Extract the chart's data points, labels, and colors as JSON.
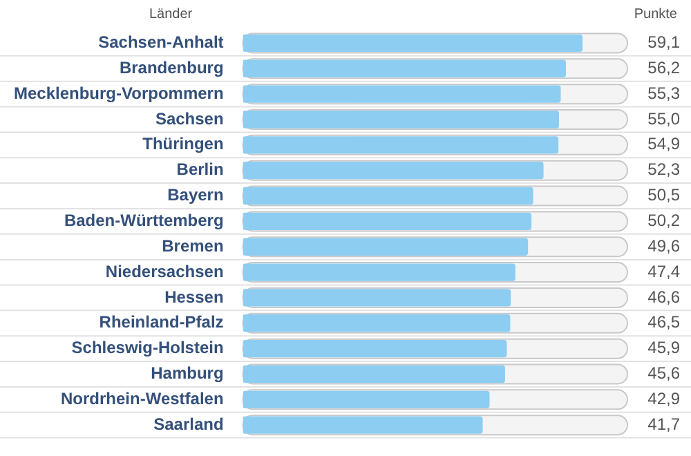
{
  "chart_data": {
    "type": "bar",
    "orientation": "horizontal",
    "ylabel": "Länder",
    "xlabel": "Punkte",
    "categories": [
      "Sachsen-Anhalt",
      "Brandenburg",
      "Mecklenburg-Vorpommern",
      "Sachsen",
      "Thüringen",
      "Berlin",
      "Bayern",
      "Baden-Württemberg",
      "Bremen",
      "Niedersachsen",
      "Hessen",
      "Rheinland-Pfalz",
      "Schleswig-Holstein",
      "Hamburg",
      "Nordrhein-Westfalen",
      "Saarland"
    ],
    "values": [
      59.1,
      56.2,
      55.3,
      55.0,
      54.9,
      52.3,
      50.5,
      50.2,
      49.6,
      47.4,
      46.6,
      46.5,
      45.9,
      45.6,
      42.9,
      41.7
    ],
    "value_labels": [
      "59,1",
      "56,2",
      "55,3",
      "55,0",
      "54,9",
      "52,3",
      "50,5",
      "50,2",
      "49,6",
      "47,4",
      "46,6",
      "46,5",
      "45,9",
      "45,6",
      "42,9",
      "41,7"
    ],
    "color": "#8dcdf2",
    "xlim": [
      0,
      67
    ],
    "grid": false,
    "legend": false
  }
}
